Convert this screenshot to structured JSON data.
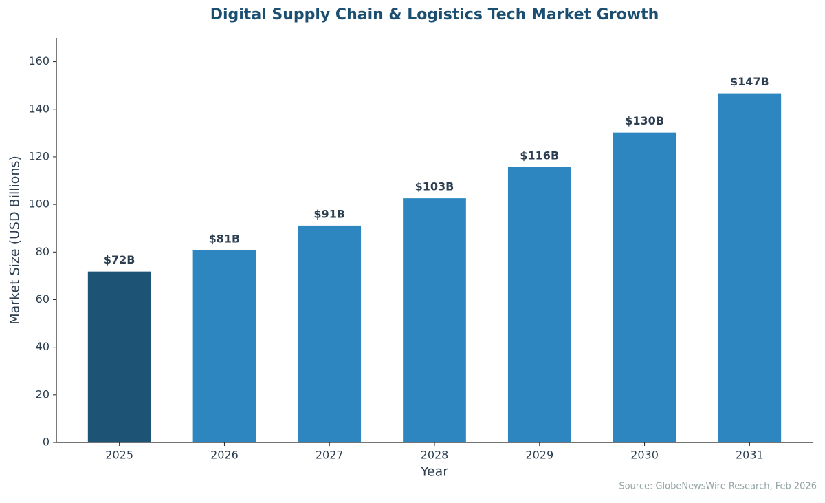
{
  "chart_data": {
    "type": "bar",
    "title": "Digital Supply Chain & Logistics Tech Market Growth",
    "x_label": "Year",
    "y_label": "Market Size (USD Billions)",
    "source": "Source: GlobeNewsWire Research, Feb 2026",
    "categories": [
      "2025",
      "2026",
      "2027",
      "2028",
      "2029",
      "2030",
      "2031"
    ],
    "values": [
      71.8,
      80.7,
      91.1,
      102.6,
      115.7,
      130.2,
      146.7
    ],
    "value_labels": [
      "$72B",
      "$81B",
      "$91B",
      "$103B",
      "$116B",
      "$130B",
      "$147B"
    ],
    "colors": [
      "#1d5475",
      "#2e86c1",
      "#2e86c1",
      "#2e86c1",
      "#2e86c1",
      "#2e86c1",
      "#2e86c1"
    ],
    "ylim": [
      0,
      170
    ],
    "yticks": [
      0,
      20,
      40,
      60,
      80,
      100,
      120,
      140,
      160
    ],
    "grid": false
  }
}
